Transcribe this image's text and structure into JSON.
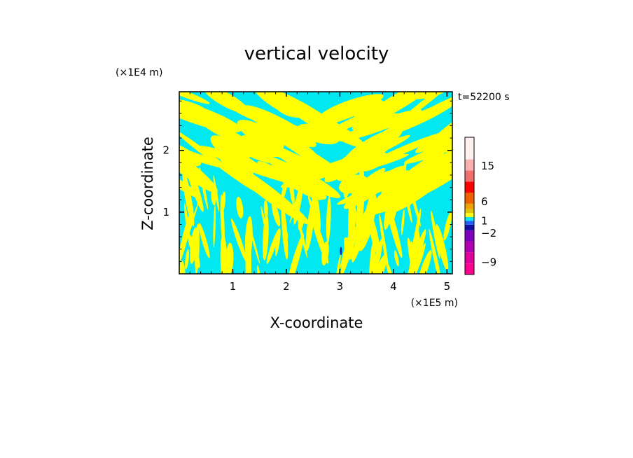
{
  "chart_data": {
    "type": "heatmap",
    "title": "vertical velocity",
    "xlabel": "X-coordinate",
    "ylabel": "Z-coordinate",
    "x_unit_label": "(×1E5 m)",
    "y_unit_label": "(×1E4 m)",
    "time_label": "t=52200 s",
    "xlim": [
      0,
      5.1
    ],
    "ylim": [
      0,
      2.95
    ],
    "x_ticks": [
      {
        "value": 1,
        "label": "1"
      },
      {
        "value": 2,
        "label": "2"
      },
      {
        "value": 3,
        "label": "3"
      },
      {
        "value": 4,
        "label": "4"
      },
      {
        "value": 5,
        "label": "5"
      }
    ],
    "y_ticks": [
      {
        "value": 1,
        "label": "1"
      },
      {
        "value": 2,
        "label": "2"
      }
    ],
    "field_colors": {
      "positive": "#ffff00",
      "negative": "#00e8f0",
      "strong_negative": "#2020b0"
    },
    "colorbar": {
      "levels": [
        {
          "color": "#ff0090",
          "weight": 1
        },
        {
          "color": "#e0009a",
          "weight": 1
        },
        {
          "color": "#b000b0",
          "weight": 1
        },
        {
          "color": "#8000c0",
          "weight": 1
        },
        {
          "color": "#1010a0",
          "weight": 0.5
        },
        {
          "color": "#2060ff",
          "weight": 0.35
        },
        {
          "color": "#00e8f0",
          "weight": 0.35
        },
        {
          "color": "#ffff00",
          "weight": 0.35
        },
        {
          "color": "#e0c800",
          "weight": 0.35
        },
        {
          "color": "#f0a000",
          "weight": 0.5
        },
        {
          "color": "#f06000",
          "weight": 1
        },
        {
          "color": "#ff0000",
          "weight": 1
        },
        {
          "color": "#f07070",
          "weight": 1
        },
        {
          "color": "#f8b0b0",
          "weight": 1
        },
        {
          "color": "#fff0f0",
          "weight": 2
        }
      ],
      "labels": [
        {
          "text": "15",
          "at": 0.79
        },
        {
          "text": "6",
          "at": 0.53
        },
        {
          "text": "1",
          "at": 0.39
        },
        {
          "text": "−2",
          "at": 0.3
        },
        {
          "text": "−9",
          "at": 0.09
        }
      ]
    }
  }
}
